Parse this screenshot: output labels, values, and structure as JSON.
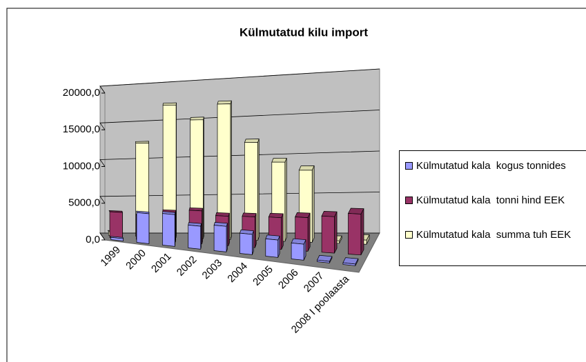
{
  "chart_data": {
    "type": "bar3d",
    "title": "Külmutatud kilu import",
    "categories": [
      "1999",
      "2000",
      "2001",
      "2002",
      "2003",
      "2004",
      "2005",
      "2006",
      "2007",
      "2008 I poolaasta"
    ],
    "series": [
      {
        "name": "Külmutatud kala  kogus tonnides",
        "color": "#9999ff",
        "values": [
          300,
          4000,
          4200,
          3000,
          3300,
          2600,
          2200,
          2000,
          200,
          200
        ]
      },
      {
        "name": "Külmutatud kala  tonni hind EEK",
        "color": "#993366",
        "values": [
          3500,
          3200,
          3900,
          4300,
          3800,
          3900,
          4000,
          4200,
          4500,
          5000
        ]
      },
      {
        "name": "Külmutatud kala  summa tuh EEK",
        "color": "#ffffcc",
        "values": [
          500,
          12500,
          17500,
          15500,
          17500,
          12500,
          10000,
          9000,
          300,
          500
        ]
      }
    ],
    "ylim": [
      0,
      20000
    ],
    "yticks": [
      {
        "value": 0,
        "label": "0,0"
      },
      {
        "value": 5000,
        "label": "5000,0"
      },
      {
        "value": 10000,
        "label": "10000,0"
      },
      {
        "value": 15000,
        "label": "15000,0"
      },
      {
        "value": 20000,
        "label": "20000,0"
      }
    ],
    "grid": true,
    "legend": "right"
  }
}
